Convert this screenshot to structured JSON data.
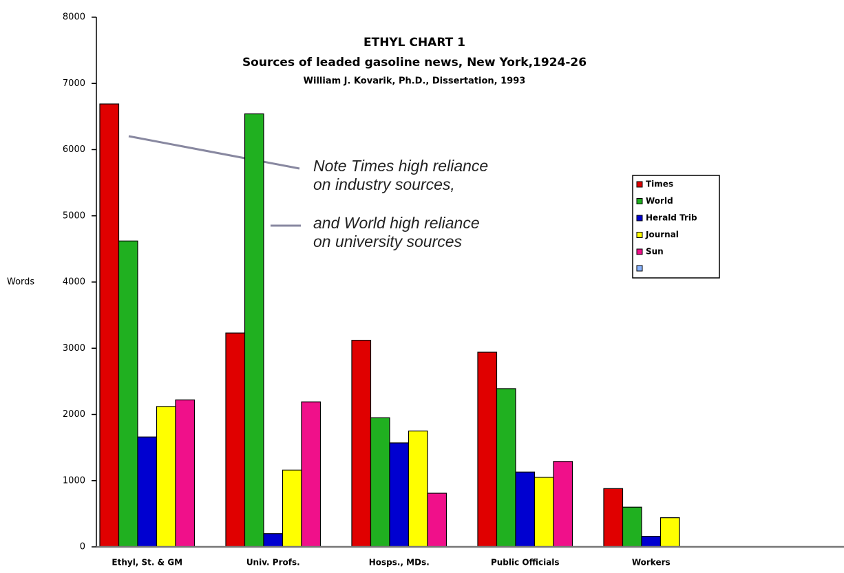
{
  "chart_data": {
    "type": "bar",
    "title": "ETHYL CHART 1",
    "subtitle": "Sources of leaded gasoline news, New York,1924-26",
    "caption": "William J. Kovarik, Ph.D., Dissertation, 1993",
    "y_label": "Words",
    "annotations": [
      "Note Times high reliance",
      "on industry sources,",
      "and World high reliance",
      "on university sources"
    ],
    "categories": [
      "Ethyl, St. & GM",
      "Univ. Profs.",
      "Hosps., MDs.",
      "Public Officials",
      "Workers"
    ],
    "series": [
      {
        "name": "Times",
        "color": "#e00000",
        "values": [
          6690,
          3230,
          3120,
          2940,
          880
        ]
      },
      {
        "name": "World",
        "color": "#20b020",
        "values": [
          4620,
          6540,
          1950,
          2390,
          600
        ]
      },
      {
        "name": "Herald Trib",
        "color": "#0000d0",
        "values": [
          1660,
          200,
          1570,
          1130,
          160
        ]
      },
      {
        "name": "Journal",
        "color": "#ffff00",
        "values": [
          2120,
          1160,
          1750,
          1050,
          440
        ]
      },
      {
        "name": "Sun",
        "color": "#f0108a",
        "values": [
          2220,
          2190,
          810,
          1290,
          0
        ]
      }
    ],
    "ylim": [
      0,
      8000
    ],
    "yticks": [
      0,
      1000,
      2000,
      3000,
      4000,
      5000,
      6000,
      7000,
      8000
    ]
  }
}
